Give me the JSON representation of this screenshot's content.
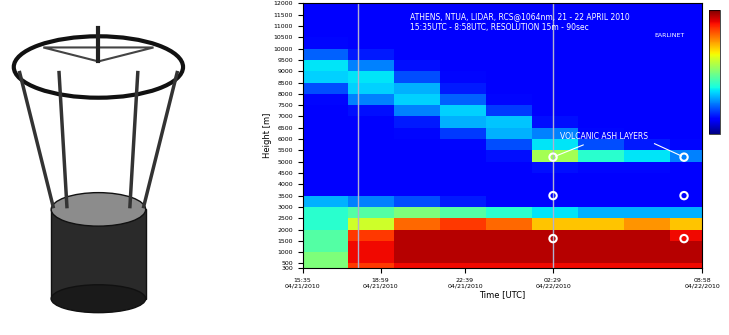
{
  "chart_data": {
    "type": "heatmap",
    "title": "ATHENS, NTUA, LIDAR, RCS@1064nm, 21 - 22 APRIL 2010",
    "subtitle": "15:35UTC - 8:58UTC, RESOLUTION 15m - 90sec",
    "xlabel": "Time [UTC]",
    "ylabel": "Height [m]",
    "color": "jet",
    "x_edges": [
      0,
      2,
      4,
      6,
      8,
      10,
      12,
      14,
      16,
      17.383
    ],
    "y_edges": [
      300,
      500,
      1000,
      1500,
      2000,
      2500,
      3000,
      3500,
      4000,
      4500,
      5000,
      5500,
      6000,
      6500,
      7000,
      7500,
      8000,
      8500,
      9000,
      9500,
      10000,
      10500,
      11000,
      11500,
      12000
    ],
    "cells": [
      [
        0.5,
        0.85,
        0.9,
        0.9,
        0.9,
        0.9,
        0.9,
        0.9,
        0.9
      ],
      [
        0.5,
        0.9,
        0.95,
        0.95,
        0.95,
        0.95,
        0.95,
        0.95,
        0.95
      ],
      [
        0.45,
        0.9,
        0.95,
        0.95,
        0.95,
        0.95,
        0.95,
        0.95,
        0.95
      ],
      [
        0.45,
        0.85,
        0.95,
        0.95,
        0.95,
        0.95,
        0.95,
        0.95,
        0.9
      ],
      [
        0.4,
        0.6,
        0.8,
        0.85,
        0.8,
        0.7,
        0.7,
        0.75,
        0.7
      ],
      [
        0.4,
        0.45,
        0.5,
        0.45,
        0.4,
        0.35,
        0.3,
        0.3,
        0.3
      ],
      [
        0.3,
        0.25,
        0.2,
        0.15,
        0.12,
        0.12,
        0.12,
        0.12,
        0.12
      ],
      [
        0.12,
        0.12,
        0.12,
        0.12,
        0.12,
        0.12,
        0.12,
        0.12,
        0.12
      ],
      [
        0.12,
        0.12,
        0.12,
        0.12,
        0.12,
        0.12,
        0.12,
        0.12,
        0.12
      ],
      [
        0.12,
        0.12,
        0.12,
        0.12,
        0.12,
        0.14,
        0.13,
        0.13,
        0.12
      ],
      [
        0.12,
        0.12,
        0.12,
        0.12,
        0.14,
        0.55,
        0.4,
        0.35,
        0.25
      ],
      [
        0.12,
        0.12,
        0.12,
        0.13,
        0.2,
        0.35,
        0.2,
        0.15,
        0.13
      ],
      [
        0.12,
        0.12,
        0.13,
        0.18,
        0.3,
        0.25,
        0.13,
        0.12,
        0.12
      ],
      [
        0.12,
        0.12,
        0.15,
        0.3,
        0.32,
        0.14,
        0.12,
        0.12,
        0.12
      ],
      [
        0.12,
        0.14,
        0.25,
        0.33,
        0.18,
        0.12,
        0.12,
        0.12,
        0.12
      ],
      [
        0.13,
        0.25,
        0.33,
        0.22,
        0.13,
        0.12,
        0.12,
        0.12,
        0.12
      ],
      [
        0.2,
        0.33,
        0.3,
        0.15,
        0.12,
        0.12,
        0.12,
        0.12,
        0.12
      ],
      [
        0.33,
        0.35,
        0.2,
        0.13,
        0.12,
        0.12,
        0.12,
        0.12,
        0.12
      ],
      [
        0.35,
        0.25,
        0.14,
        0.12,
        0.12,
        0.12,
        0.12,
        0.12,
        0.12
      ],
      [
        0.22,
        0.15,
        0.12,
        0.12,
        0.12,
        0.12,
        0.12,
        0.12,
        0.12
      ],
      [
        0.13,
        0.12,
        0.12,
        0.12,
        0.12,
        0.12,
        0.12,
        0.12,
        0.12
      ],
      [
        0.12,
        0.12,
        0.12,
        0.12,
        0.12,
        0.12,
        0.12,
        0.12,
        0.12
      ],
      [
        0.12,
        0.12,
        0.12,
        0.12,
        0.12,
        0.12,
        0.12,
        0.12,
        0.12
      ],
      [
        0.12,
        0.12,
        0.12,
        0.12,
        0.12,
        0.12,
        0.12,
        0.12,
        0.12
      ]
    ],
    "colorbar": {
      "range": [
        0,
        1
      ]
    },
    "xlim": [
      0,
      17.383
    ],
    "xticks": [
      {
        "value": 0,
        "label": "15:35\n04/21/2010"
      },
      {
        "value": 3.4,
        "label": "18:59\n04/21/2010"
      },
      {
        "value": 7.067,
        "label": "22:39\n04/21/2010"
      },
      {
        "value": 10.9,
        "label": "02:29\n04/22/2010"
      },
      {
        "value": 17.383,
        "label": "08:58\n04/22/2010"
      }
    ],
    "ylim": [
      300,
      12000
    ],
    "yticks": [
      300,
      500,
      1000,
      1500,
      2000,
      2500,
      3000,
      3500,
      4000,
      4500,
      5000,
      5500,
      6000,
      6500,
      7000,
      7500,
      8000,
      8500,
      9000,
      9500,
      10000,
      10500,
      11000,
      11500,
      12000
    ],
    "vlines": [
      2.4,
      10.9
    ],
    "highlight_points": {
      "x": [
        10.9,
        10.9,
        10.9,
        16.6,
        16.6,
        16.6
      ],
      "y": [
        5200,
        3500,
        1600,
        5200,
        3500,
        1600
      ]
    },
    "annotations": [
      {
        "text": "VOLCANIC ASH LAYERS",
        "x": 11.2,
        "y": 6000
      },
      {
        "text": "EARLINET",
        "x": 15.3,
        "y": 10700
      }
    ]
  }
}
